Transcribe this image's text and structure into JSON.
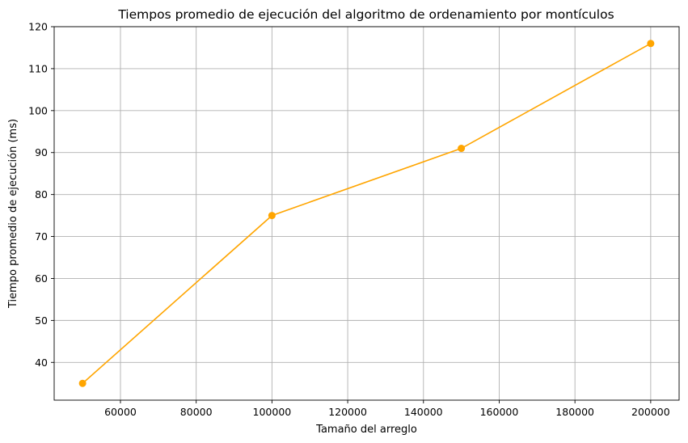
{
  "chart_data": {
    "type": "line",
    "title": "Tiempos promedio de ejecución del algoritmo de ordenamiento por montículos",
    "xlabel": "Tamaño del arreglo",
    "ylabel": "Tiempo promedio de ejecución (ms)",
    "xlim": [
      42500,
      207500
    ],
    "ylim": [
      31,
      120
    ],
    "xticks": [
      60000,
      80000,
      100000,
      120000,
      140000,
      160000,
      180000,
      200000
    ],
    "yticks": [
      40,
      50,
      60,
      70,
      80,
      90,
      100,
      110,
      120
    ],
    "grid": true,
    "series": [
      {
        "color": "#ffa500",
        "marker": "circle",
        "points": [
          {
            "x": 50000,
            "y": 35
          },
          {
            "x": 100000,
            "y": 75
          },
          {
            "x": 150000,
            "y": 91
          },
          {
            "x": 200000,
            "y": 116
          }
        ]
      }
    ]
  }
}
